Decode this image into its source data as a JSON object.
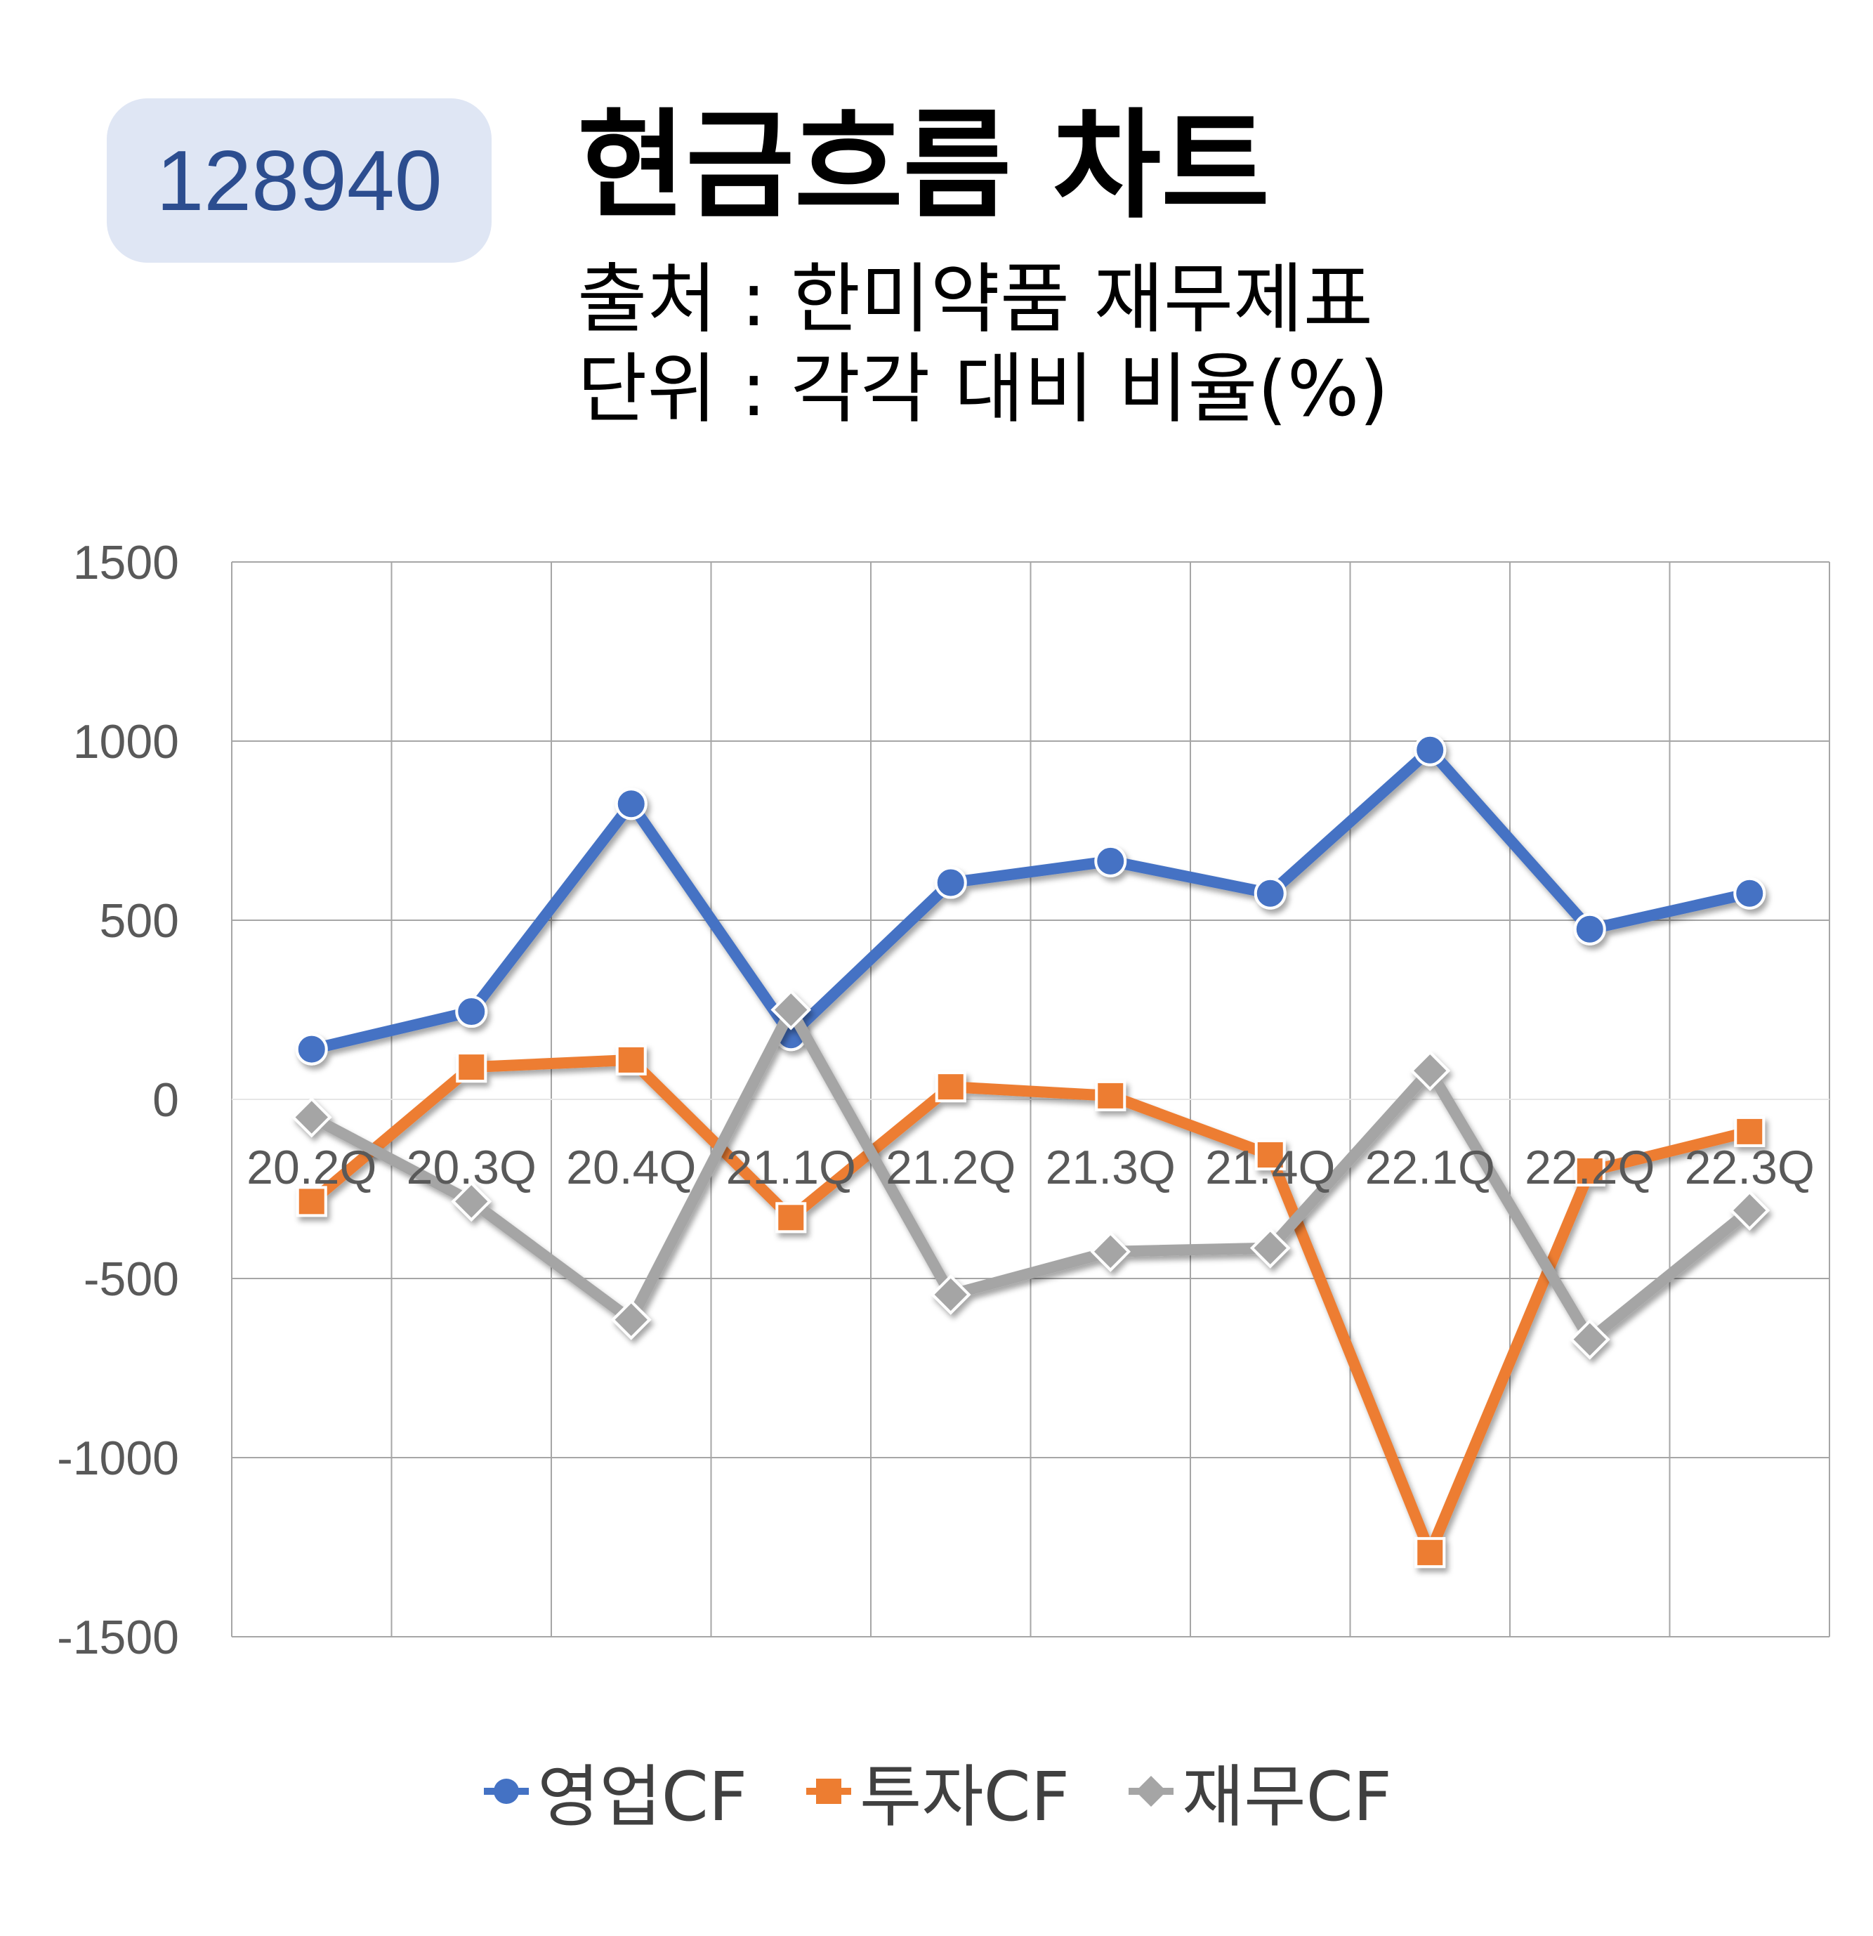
{
  "badge": {
    "code": "128940",
    "bg_color": "#dfe6f4",
    "text_color": "#2c4d8f"
  },
  "header": {
    "title": "현금흐름 차트",
    "source_line": "출처 : 한미약품 재무제표",
    "unit_line": "단위 : 각각 대비 비율(%)"
  },
  "chart_data": {
    "type": "line",
    "categories": [
      "20.2Q",
      "20.3Q",
      "20.4Q",
      "21.1Q",
      "21.2Q",
      "21.3Q",
      "21.4Q",
      "22.1Q",
      "22.2Q",
      "22.3Q"
    ],
    "series": [
      {
        "name": "영업CF",
        "color": "#4472c4",
        "marker": "circle",
        "values": [
          140,
          245,
          825,
          180,
          605,
          665,
          575,
          975,
          475,
          575
        ]
      },
      {
        "name": "투자CF",
        "color": "#ed7d31",
        "marker": "square",
        "values": [
          -285,
          90,
          110,
          -330,
          35,
          10,
          -155,
          -1265,
          -200,
          -90
        ]
      },
      {
        "name": "재무CF",
        "color": "#a5a5a5",
        "marker": "diamond",
        "values": [
          -50,
          -285,
          -615,
          250,
          -545,
          -425,
          -415,
          80,
          -670,
          -310
        ]
      }
    ],
    "y_ticks": [
      "1500",
      "1000",
      "500",
      "0",
      "-500",
      "-1000",
      "-1500"
    ],
    "ylim": [
      -1500,
      1500
    ],
    "grid": true,
    "legend_position": "bottom"
  }
}
